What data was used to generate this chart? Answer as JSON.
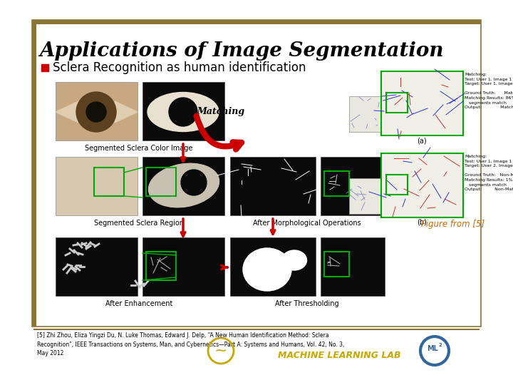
{
  "background_color": "#ffffff",
  "slide_border_color": "#8B7536",
  "title": "Applications of Image Segmentation",
  "title_color": "#000000",
  "title_fontsize": 20,
  "title_style": "italic",
  "title_weight": "bold",
  "title_font": "serif",
  "bullet_color": "#cc0000",
  "bullet_text": "Sclera Recognition as human identification",
  "bullet_fontsize": 12,
  "label_segmented_color_image": "Segmented Sclera Color Image",
  "label_segmented_region": "Segmented Sclera Region",
  "label_after_enhancement": "After Enhancement",
  "label_matching": "Matching",
  "label_after_morphological": "After Morphological Operations",
  "label_after_thresholding": "After Thresholding",
  "label_figure": "Figure from [5]",
  "reference_text": "[5] Zhi Zhou, Eliza Yingzi Du, N. Luke Thomas, Edward J. Delp, “A New Human Identification Method: Sclera\nRecognition”, IEEE Transactions on Systems, Man, and Cybernetics—Part A: Systems and Humans, Vol. 42, No. 3,\nMay 2012",
  "machine_learning_text": "MACHINE LEARNING LAB",
  "arrow_red": "#cc0000",
  "green_border": "#00aa00",
  "label_fontsize": 7.0
}
